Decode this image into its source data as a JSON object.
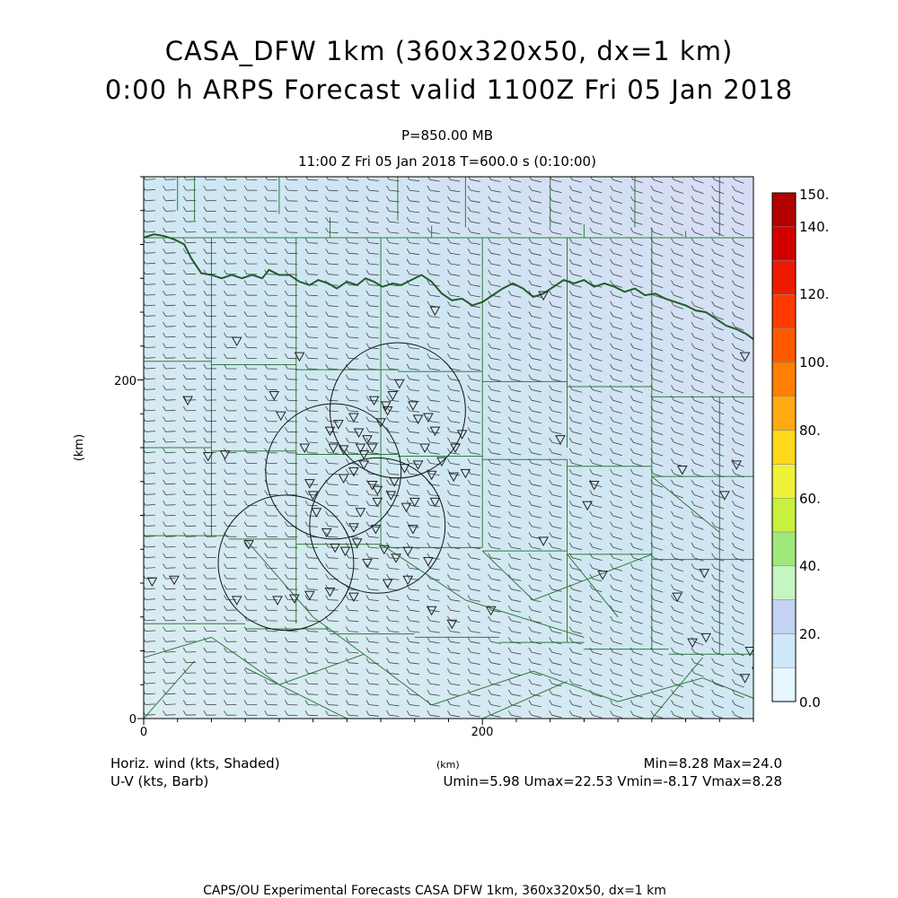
{
  "header": {
    "title_line1": "CASA_DFW 1km (360x320x50, dx=1 km)",
    "title_line2": "0:00 h ARPS Forecast valid 1100Z Fri 05 Jan 2018",
    "pressure_level": "P=850.00 MB",
    "valid_time": "11:00 Z Fri 05 Jan 2018    T=600.0 s (0:10:00)"
  },
  "axes": {
    "x_unit": "(km)",
    "y_unit": "(km)",
    "x_ticks": [
      "0",
      "200"
    ],
    "y_ticks": [
      "0",
      "200"
    ],
    "x_range_km": [
      0,
      360
    ],
    "y_range_km": [
      0,
      320
    ]
  },
  "colorbar": {
    "labels": [
      "150.",
      "140.",
      "120.",
      "100.",
      "80.",
      "60.",
      "40.",
      "20.",
      "0.0"
    ],
    "colors": [
      "#e6f6ff",
      "#cfe8f8",
      "#c4d3f3",
      "#c6f5c4",
      "#9fe87c",
      "#c8f03c",
      "#f0f23a",
      "#ffd81a",
      "#ffaa12",
      "#ff8000",
      "#ff5a00",
      "#ff3a00",
      "#ee1a00",
      "#d40000",
      "#b30000"
    ]
  },
  "footer": {
    "left_line1": "Horiz. wind (kts, Shaded)",
    "left_line2": "U-V (kts, Barb)",
    "center_unit": "(km)",
    "right_line1": "Min=8.28 Max=24.0",
    "right_line2": "Umin=5.98 Umax=22.53 Vmin=-8.17 Vmax=8.28",
    "credit": "CAPS/OU Experimental Forecasts  CASA DFW 1km, 360x320x50, dx=1 km"
  },
  "map": {
    "colors": {
      "field_base": "#cfe7f3",
      "field_high": "#d7dcf4",
      "field_low": "#dbecf2",
      "county_lines": "#2f7d3a",
      "river": "#1d5e2a",
      "barbs": "#444444",
      "stations": "#222222",
      "radar_rings": "#111111"
    },
    "wind": {
      "speed_min_kts": 8.28,
      "speed_max_kts": 24.0,
      "u_range_kts": [
        5.98,
        22.53
      ],
      "v_range_kts": [
        -8.17,
        8.28
      ]
    },
    "radar_coverage_rings": [
      {
        "center_km": [
          150,
          182
        ],
        "radius_km": 40
      },
      {
        "center_km": [
          112,
          146
        ],
        "radius_km": 40
      },
      {
        "center_km": [
          138,
          114
        ],
        "radius_km": 40
      },
      {
        "center_km": [
          84,
          92
        ],
        "radius_km": 40
      }
    ],
    "stations_km": [
      [
        18,
        82
      ],
      [
        5,
        81
      ],
      [
        55,
        223
      ],
      [
        26,
        188
      ],
      [
        48,
        156
      ],
      [
        38,
        155
      ],
      [
        62,
        103
      ],
      [
        55,
        70
      ],
      [
        77,
        191
      ],
      [
        81,
        179
      ],
      [
        92,
        214
      ],
      [
        95,
        160
      ],
      [
        98,
        139
      ],
      [
        102,
        122
      ],
      [
        100,
        132
      ],
      [
        110,
        170
      ],
      [
        115,
        174
      ],
      [
        124,
        178
      ],
      [
        127,
        169
      ],
      [
        128,
        160
      ],
      [
        130,
        156
      ],
      [
        132,
        165
      ],
      [
        135,
        160
      ],
      [
        140,
        175
      ],
      [
        144,
        182
      ],
      [
        147,
        191
      ],
      [
        151,
        198
      ],
      [
        159,
        185
      ],
      [
        162,
        177
      ],
      [
        168,
        178
      ],
      [
        172,
        170
      ],
      [
        166,
        160
      ],
      [
        162,
        150
      ],
      [
        170,
        144
      ],
      [
        176,
        152
      ],
      [
        184,
        160
      ],
      [
        188,
        168
      ],
      [
        183,
        143
      ],
      [
        190,
        145
      ],
      [
        112,
        160
      ],
      [
        118,
        142
      ],
      [
        124,
        146
      ],
      [
        130,
        150
      ],
      [
        135,
        138
      ],
      [
        108,
        110
      ],
      [
        113,
        101
      ],
      [
        119,
        99
      ],
      [
        126,
        104
      ],
      [
        137,
        112
      ],
      [
        142,
        100
      ],
      [
        149,
        95
      ],
      [
        156,
        99
      ],
      [
        159,
        112
      ],
      [
        168,
        93
      ],
      [
        172,
        128
      ],
      [
        160,
        128
      ],
      [
        146,
        132
      ],
      [
        138,
        135
      ],
      [
        148,
        140
      ],
      [
        154,
        148
      ],
      [
        138,
        128
      ],
      [
        128,
        122
      ],
      [
        124,
        113
      ],
      [
        132,
        92
      ],
      [
        144,
        80
      ],
      [
        110,
        75
      ],
      [
        89,
        71
      ],
      [
        98,
        73
      ],
      [
        79,
        70
      ],
      [
        124,
        72
      ],
      [
        156,
        82
      ],
      [
        170,
        64
      ],
      [
        182,
        56
      ],
      [
        205,
        64
      ],
      [
        246,
        165
      ],
      [
        266,
        138
      ],
      [
        236,
        105
      ],
      [
        262,
        126
      ],
      [
        271,
        85
      ],
      [
        315,
        72
      ],
      [
        324,
        45
      ],
      [
        331,
        86
      ],
      [
        318,
        147
      ],
      [
        236,
        250
      ],
      [
        355,
        214
      ],
      [
        332,
        48
      ],
      [
        350,
        150
      ],
      [
        343,
        132
      ],
      [
        362,
        28
      ],
      [
        358,
        40
      ],
      [
        355,
        24
      ],
      [
        172,
        241
      ],
      [
        155,
        125
      ],
      [
        118,
        159
      ],
      [
        143,
        185
      ],
      [
        136,
        188
      ]
    ],
    "county_lines_km": [
      [
        [
          30,
          320
        ],
        [
          30,
          294
        ]
      ],
      [
        [
          80,
          320
        ],
        [
          80,
          298
        ]
      ],
      [
        [
          150,
          320
        ],
        [
          150,
          294
        ]
      ],
      [
        [
          190,
          320
        ],
        [
          190,
          290
        ]
      ],
      [
        [
          240,
          320
        ],
        [
          240,
          290
        ]
      ],
      [
        [
          290,
          320
        ],
        [
          290,
          290
        ]
      ],
      [
        [
          340,
          320
        ],
        [
          340,
          285
        ]
      ],
      [
        [
          0,
          284
        ],
        [
          360,
          284
        ]
      ],
      [
        [
          0,
          211
        ],
        [
          40,
          211
        ]
      ],
      [
        [
          40,
          209
        ],
        [
          90,
          209
        ]
      ],
      [
        [
          90,
          206
        ],
        [
          150,
          206
        ]
      ],
      [
        [
          150,
          205
        ],
        [
          200,
          205
        ]
      ],
      [
        [
          200,
          199
        ],
        [
          250,
          199
        ]
      ],
      [
        [
          250,
          196
        ],
        [
          300,
          196
        ]
      ],
      [
        [
          300,
          190
        ],
        [
          360,
          190
        ]
      ],
      [
        [
          0,
          160
        ],
        [
          40,
          160
        ]
      ],
      [
        [
          40,
          158
        ],
        [
          90,
          158
        ]
      ],
      [
        [
          90,
          156
        ],
        [
          150,
          156
        ]
      ],
      [
        [
          150,
          155
        ],
        [
          200,
          155
        ]
      ],
      [
        [
          200,
          153
        ],
        [
          250,
          153
        ]
      ],
      [
        [
          250,
          149
        ],
        [
          300,
          149
        ]
      ],
      [
        [
          300,
          143
        ],
        [
          360,
          143
        ]
      ],
      [
        [
          0,
          108
        ],
        [
          50,
          108
        ]
      ],
      [
        [
          50,
          106
        ],
        [
          90,
          106
        ]
      ],
      [
        [
          90,
          103
        ],
        [
          140,
          103
        ]
      ],
      [
        [
          140,
          101
        ],
        [
          200,
          101
        ]
      ],
      [
        [
          200,
          99
        ],
        [
          250,
          99
        ]
      ],
      [
        [
          250,
          97
        ],
        [
          300,
          97
        ]
      ],
      [
        [
          300,
          94
        ],
        [
          360,
          94
        ]
      ],
      [
        [
          0,
          56
        ],
        [
          60,
          56
        ]
      ],
      [
        [
          60,
          53
        ],
        [
          110,
          53
        ]
      ],
      [
        [
          110,
          50
        ],
        [
          160,
          50
        ]
      ],
      [
        [
          160,
          48
        ],
        [
          210,
          48
        ]
      ],
      [
        [
          210,
          45
        ],
        [
          260,
          45
        ]
      ],
      [
        [
          260,
          41
        ],
        [
          310,
          41
        ]
      ],
      [
        [
          310,
          38
        ],
        [
          360,
          38
        ]
      ],
      [
        [
          40,
          284
        ],
        [
          40,
          108
        ]
      ],
      [
        [
          90,
          284
        ],
        [
          90,
          160
        ]
      ],
      [
        [
          90,
          160
        ],
        [
          90,
          56
        ]
      ],
      [
        [
          140,
          284
        ],
        [
          140,
          160
        ]
      ],
      [
        [
          140,
          160
        ],
        [
          140,
          103
        ]
      ],
      [
        [
          200,
          284
        ],
        [
          200,
          160
        ]
      ],
      [
        [
          200,
          160
        ],
        [
          200,
          101
        ]
      ],
      [
        [
          250,
          284
        ],
        [
          250,
          160
        ]
      ],
      [
        [
          250,
          153
        ],
        [
          250,
          45
        ]
      ],
      [
        [
          300,
          290
        ],
        [
          300,
          160
        ]
      ],
      [
        [
          300,
          160
        ],
        [
          300,
          41
        ]
      ],
      [
        [
          340,
          190
        ],
        [
          340,
          38
        ]
      ],
      [
        [
          0,
          36
        ],
        [
          40,
          48
        ]
      ],
      [
        [
          40,
          48
        ],
        [
          80,
          20
        ]
      ],
      [
        [
          80,
          20
        ],
        [
          130,
          38
        ]
      ],
      [
        [
          130,
          38
        ],
        [
          170,
          8
        ]
      ],
      [
        [
          170,
          8
        ],
        [
          230,
          28
        ]
      ],
      [
        [
          230,
          28
        ],
        [
          280,
          10
        ]
      ],
      [
        [
          280,
          10
        ],
        [
          330,
          24
        ]
      ],
      [
        [
          330,
          24
        ],
        [
          360,
          12
        ]
      ],
      [
        [
          0,
          0
        ],
        [
          30,
          34
        ]
      ],
      [
        [
          60,
          30
        ],
        [
          120,
          0
        ]
      ],
      [
        [
          200,
          0
        ],
        [
          250,
          22
        ]
      ],
      [
        [
          300,
          0
        ],
        [
          330,
          36
        ]
      ],
      [
        [
          140,
          103
        ],
        [
          190,
          70
        ]
      ],
      [
        [
          190,
          70
        ],
        [
          260,
          48
        ]
      ],
      [
        [
          250,
          97
        ],
        [
          280,
          60
        ]
      ],
      [
        [
          60,
          106
        ],
        [
          100,
          60
        ]
      ],
      [
        [
          100,
          60
        ],
        [
          130,
          38
        ]
      ],
      [
        [
          200,
          99
        ],
        [
          230,
          70
        ]
      ],
      [
        [
          230,
          70
        ],
        [
          300,
          97
        ]
      ],
      [
        [
          300,
          143
        ],
        [
          340,
          110
        ]
      ],
      [
        [
          20,
          320
        ],
        [
          20,
          300
        ]
      ],
      [
        [
          110,
          296
        ],
        [
          110,
          284
        ]
      ],
      [
        [
          170,
          291
        ],
        [
          170,
          284
        ]
      ],
      [
        [
          260,
          292
        ],
        [
          260,
          284
        ]
      ],
      [
        [
          320,
          288
        ],
        [
          320,
          284
        ]
      ]
    ],
    "river_km": [
      [
        0,
        284
      ],
      [
        6,
        286
      ],
      [
        12,
        285
      ],
      [
        18,
        283
      ],
      [
        24,
        280
      ],
      [
        28,
        272
      ],
      [
        34,
        263
      ],
      [
        40,
        262
      ],
      [
        46,
        260
      ],
      [
        52,
        262
      ],
      [
        58,
        260
      ],
      [
        64,
        262
      ],
      [
        70,
        260
      ],
      [
        74,
        265
      ],
      [
        80,
        262
      ],
      [
        86,
        262
      ],
      [
        92,
        258
      ],
      [
        98,
        256
      ],
      [
        103,
        259
      ],
      [
        109,
        257
      ],
      [
        114,
        254
      ],
      [
        120,
        258
      ],
      [
        126,
        256
      ],
      [
        131,
        260
      ],
      [
        136,
        258
      ],
      [
        141,
        255
      ],
      [
        147,
        257
      ],
      [
        152,
        256
      ],
      [
        158,
        259
      ],
      [
        164,
        262
      ],
      [
        170,
        258
      ],
      [
        176,
        251
      ],
      [
        182,
        247
      ],
      [
        188,
        248
      ],
      [
        194,
        244
      ],
      [
        200,
        246
      ],
      [
        206,
        250
      ],
      [
        212,
        254
      ],
      [
        218,
        257
      ],
      [
        224,
        254
      ],
      [
        230,
        249
      ],
      [
        236,
        251
      ],
      [
        242,
        255
      ],
      [
        248,
        259
      ],
      [
        254,
        257
      ],
      [
        260,
        259
      ],
      [
        266,
        255
      ],
      [
        272,
        257
      ],
      [
        278,
        255
      ],
      [
        284,
        252
      ],
      [
        290,
        254
      ],
      [
        296,
        250
      ],
      [
        302,
        251
      ],
      [
        308,
        248
      ],
      [
        314,
        246
      ],
      [
        320,
        244
      ],
      [
        326,
        241
      ],
      [
        332,
        240
      ],
      [
        338,
        236
      ],
      [
        344,
        232
      ],
      [
        350,
        230
      ],
      [
        356,
        227
      ],
      [
        360,
        224
      ]
    ]
  }
}
